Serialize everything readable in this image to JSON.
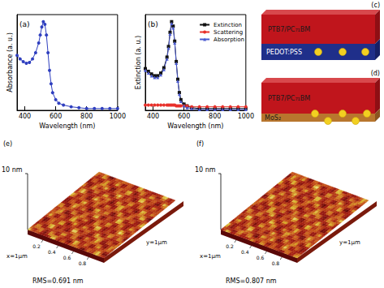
{
  "chart_data": [
    {
      "title": "(a)",
      "type": "line",
      "xlabel": "Wavelength (nm)",
      "ylabel": "Absorbance (a. u.)",
      "x": [
        350,
        370,
        390,
        410,
        430,
        450,
        470,
        490,
        500,
        510,
        520,
        530,
        540,
        550,
        560,
        570,
        580,
        600,
        620,
        650,
        700,
        750,
        800,
        850,
        900,
        950,
        1000
      ],
      "xlim": [
        350,
        1000
      ],
      "xticks": [
        400,
        600,
        800,
        1000
      ],
      "ylim": [
        0,
        1.08
      ],
      "tick_labels": "x",
      "grid": false,
      "series": [
        {
          "color": "#2f3fbf",
          "marker": "circle",
          "values": [
            0.62,
            0.58,
            0.55,
            0.53,
            0.54,
            0.58,
            0.65,
            0.76,
            0.85,
            0.94,
            1.0,
            0.97,
            0.85,
            0.65,
            0.45,
            0.3,
            0.2,
            0.12,
            0.08,
            0.06,
            0.04,
            0.03,
            0.02,
            0.02,
            0.02,
            0.02,
            0.02
          ]
        }
      ]
    },
    {
      "title": "(b)",
      "type": "line",
      "xlabel": "Wavelength (nm)",
      "ylabel": "Extinction (a. u.)",
      "x": [
        350,
        370,
        390,
        410,
        430,
        450,
        470,
        490,
        500,
        510,
        520,
        530,
        540,
        550,
        560,
        570,
        580,
        600,
        620,
        650,
        700,
        750,
        800,
        850,
        900,
        950,
        1000
      ],
      "xlim": [
        350,
        1000
      ],
      "xticks": [
        400,
        600,
        800,
        1000
      ],
      "ylim": [
        0,
        1.08
      ],
      "tick_labels": "x",
      "grid": false,
      "legend": "upper right",
      "series": [
        {
          "name": "Extinction",
          "color": "#111111",
          "marker": "square",
          "values": [
            0.47,
            0.44,
            0.41,
            0.39,
            0.39,
            0.42,
            0.48,
            0.6,
            0.72,
            0.88,
            1.0,
            0.95,
            0.78,
            0.55,
            0.35,
            0.2,
            0.12,
            0.07,
            0.05,
            0.03,
            0.02,
            0.02,
            0.02,
            0.02,
            0.02,
            0.02,
            0.02
          ]
        },
        {
          "name": "Scattering",
          "color": "#e8302a",
          "marker": "circle",
          "values": [
            0.06,
            0.06,
            0.06,
            0.06,
            0.06,
            0.06,
            0.06,
            0.06,
            0.06,
            0.06,
            0.06,
            0.06,
            0.06,
            0.05,
            0.05,
            0.05,
            0.05,
            0.05,
            0.05,
            0.04,
            0.04,
            0.04,
            0.04,
            0.04,
            0.04,
            0.04,
            0.04
          ]
        },
        {
          "name": "Absorption",
          "color": "#4a5ad0",
          "marker": "triangle",
          "values": [
            0.45,
            0.42,
            0.39,
            0.37,
            0.37,
            0.4,
            0.46,
            0.58,
            0.7,
            0.86,
            0.98,
            0.93,
            0.76,
            0.53,
            0.33,
            0.18,
            0.1,
            0.05,
            0.03,
            0.02,
            0.01,
            0.01,
            0.01,
            0.01,
            0.01,
            0.01,
            0.01
          ]
        }
      ]
    }
  ],
  "diagrams": [
    {
      "title": "(c)",
      "layers": [
        "PTB7/PC₇₁BM",
        "PEDOT:PSS"
      ]
    },
    {
      "title": "(d)",
      "layers": [
        "PTB7/PC₇₁BM",
        "MoS₂"
      ]
    }
  ],
  "afm_images": [
    {
      "title": "(e)",
      "z_label": "10 nm",
      "x_label": "x=1μm",
      "y_label": "y=1μm",
      "x_ticks": [
        0.2,
        0.4,
        0.6,
        0.8
      ],
      "rms": "RMS=0.691 nm"
    },
    {
      "title": "(f)",
      "z_label": "10 nm",
      "x_label": "x=1μm",
      "y_label": "y=1μm",
      "x_ticks": [
        0.2,
        0.4,
        0.6,
        0.8
      ],
      "rms": "RMS=0.807 nm"
    }
  ]
}
